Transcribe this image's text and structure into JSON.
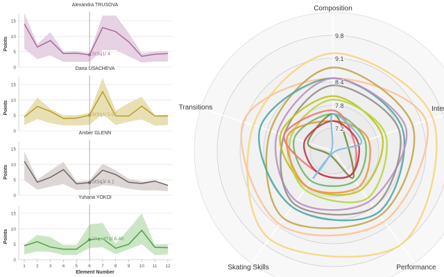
{
  "chart_data": [
    {
      "type": "area",
      "xlabel": "Element Number",
      "ylabel": "Points",
      "x": [
        1,
        2,
        3,
        4,
        5,
        6,
        7,
        8,
        9,
        10,
        11,
        12
      ],
      "ylim": [
        0,
        17.5
      ],
      "yticks": [
        0,
        5,
        10,
        15
      ],
      "grid": true,
      "highlight_x": 6,
      "panels": [
        {
          "title": "Alexandra TRUSOVA",
          "color": "#a9679a",
          "band_color": "#e6d2e2",
          "values": [
            14,
            6.5,
            8.6,
            4.4,
            4.5,
            4,
            12.8,
            11.5,
            8.2,
            3.5,
            4.2,
            4.4
          ],
          "lower": [
            6,
            2.6,
            3.8,
            1.7,
            1.7,
            1.7,
            5.5,
            5.5,
            3.5,
            1.5,
            1.8,
            1.8
          ],
          "upper": [
            17.5,
            7.5,
            11.3,
            5,
            5.2,
            4.5,
            16.7,
            16.7,
            11,
            4.5,
            5,
            5.3
          ],
          "annotation": "StSq1/ 4"
        },
        {
          "title": "Daria USACHEVA",
          "color": "#b99b1f",
          "band_color": "#e8dfb4",
          "values": [
            4.5,
            7.9,
            6.3,
            4,
            4.1,
            5.07,
            12.7,
            4.8,
            4.8,
            8,
            4.8,
            4.8
          ],
          "lower": [
            1.9,
            3.8,
            2.5,
            1.8,
            1.7,
            2,
            5.5,
            1.9,
            3,
            3.7,
            1.7,
            1.9
          ],
          "upper": [
            5,
            10.8,
            7.1,
            5,
            5,
            5.8,
            17.2,
            6.5,
            9,
            11,
            5,
            5.2
          ],
          "annotation": "StSq4/ 5.07"
        },
        {
          "title": "Amber GLENN",
          "color": "#6b6462",
          "band_color": "#dcd7d5",
          "values": [
            11,
            4.2,
            5.8,
            8.3,
            3.7,
            4.1,
            8.1,
            6.7,
            4.2,
            3.8,
            4.6,
            3.2
          ],
          "lower": [
            4.8,
            1.8,
            2.8,
            3.6,
            1.7,
            1.9,
            3.3,
            3,
            2.1,
            1.6,
            1.6,
            1.3
          ],
          "upper": [
            14.2,
            5,
            8,
            10.8,
            4.5,
            4.8,
            10.2,
            8.1,
            5.3,
            4.5,
            4.7,
            3.5
          ],
          "annotation": "StSq3/ 4.1"
        },
        {
          "title": "Yuhana YOKOI",
          "color": "#4f9e45",
          "band_color": "#cbe6c4",
          "values": [
            4.5,
            5.8,
            4.1,
            3.4,
            3.4,
            6.48,
            6.8,
            3.7,
            5,
            9.5,
            4,
            3.9
          ],
          "lower": [
            1.7,
            2.7,
            2.5,
            1.5,
            1.5,
            3.8,
            4,
            1.8,
            3.4,
            5,
            1.5,
            1.7
          ],
          "upper": [
            4.8,
            8,
            7.3,
            4.7,
            4.7,
            11.4,
            11.9,
            5.2,
            9.9,
            15,
            4.8,
            5
          ],
          "annotation": "2Aq+3Tq/ 6.48"
        }
      ]
    },
    {
      "type": "radar",
      "axes": [
        "Composition",
        "Interpretation",
        "Performance",
        "Skating Skills",
        "Transitions"
      ],
      "rticks": [
        "7.2",
        "7.8",
        "8.4",
        "9.1",
        "9.8"
      ],
      "rlim": [
        6.56,
        10.4
      ],
      "series": [
        {
          "color": "#f6d57c",
          "values": [
            9.3,
            9.5,
            9.8,
            9.6,
            8.9
          ]
        },
        {
          "color": "#fdc294",
          "values": [
            8.6,
            9.3,
            9.0,
            9.1,
            9.2
          ]
        },
        {
          "color": "#c2a54e",
          "values": [
            8.9,
            8.9,
            8.8,
            8.9,
            8.4
          ]
        },
        {
          "color": "#4ea6a4",
          "values": [
            8.6,
            8.6,
            8.7,
            8.5,
            8.7
          ]
        },
        {
          "color": "#bc8fbf",
          "values": [
            8.6,
            8.7,
            8.3,
            8.3,
            8.2
          ]
        },
        {
          "color": "#938e8b",
          "values": [
            8.4,
            8.5,
            8.5,
            8.4,
            8.0
          ]
        },
        {
          "color": "#bfc21a",
          "values": [
            8.1,
            8.0,
            7.9,
            7.8,
            8.1
          ]
        },
        {
          "color": "#b8d540",
          "values": [
            8.0,
            8.1,
            8.2,
            7.9,
            7.8
          ]
        },
        {
          "color": "#f2923a",
          "values": [
            7.4,
            7.6,
            7.8,
            7.8,
            7.9
          ]
        },
        {
          "color": "#6fb86c",
          "values": [
            7.6,
            7.5,
            7.6,
            7.6,
            7.7
          ]
        },
        {
          "color": "#ee7470",
          "values": [
            7.7,
            7.2,
            7.4,
            7.3,
            8.0
          ]
        },
        {
          "color": "#6f8d3c",
          "values": [
            7.6,
            7.0,
            7.5,
            6.7,
            7.3
          ]
        },
        {
          "color": "#c0394c",
          "values": [
            7.4,
            7.3,
            7.4,
            7.3,
            7.4
          ]
        },
        {
          "color": "#7fb9de",
          "values": [
            7.6,
            7.4,
            6.6,
            7.5,
            6.6
          ]
        }
      ]
    }
  ]
}
